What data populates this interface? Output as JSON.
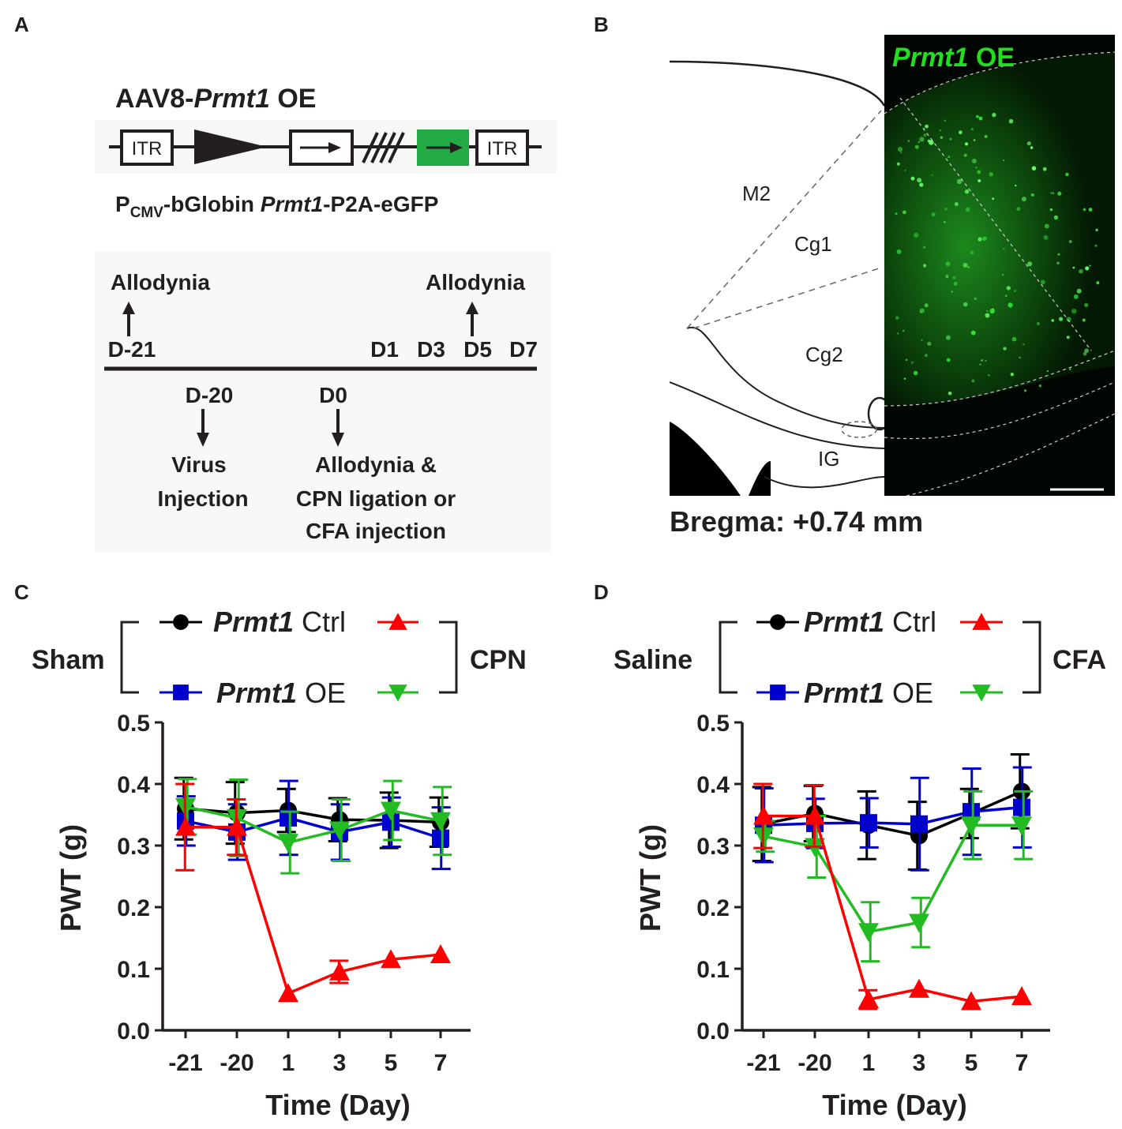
{
  "panels": {
    "a": "A",
    "b": "B",
    "c": "C",
    "d": "D"
  },
  "construct": {
    "title_prefix": "AAV8-",
    "title_gene": "Prmt1",
    "title_suffix": " OE",
    "itr_label": "ITR",
    "caption_p": "P",
    "caption_sub": "CMV",
    "caption_rest": "-bGlobin ",
    "caption_gene": "Prmt1",
    "caption_tail": "-P2A-eGFP"
  },
  "timeline": {
    "allodynia_left": "Allodynia",
    "allodynia_right": "Allodynia",
    "top_days": [
      "D-21",
      "D1",
      "D3",
      "D5",
      "D7"
    ],
    "d20": "D-20",
    "d0": "D0",
    "virus_line1": "Virus",
    "virus_line2": "Injection",
    "event_line1": "Allodynia &",
    "event_line2": "CPN ligation or",
    "event_line3": "CFA injection"
  },
  "atlas": {
    "regions": [
      "M2",
      "Cg1",
      "Cg2",
      "IG"
    ],
    "label_gene": "Prmt1",
    "label_suffix": " OE",
    "bregma": "Bregma: +0.74 mm"
  },
  "colors": {
    "ctrl_sham": "#000000",
    "ctrl_injured": "#ff0000",
    "oe_sham": "#0000cc",
    "oe_injured": "#22bb22",
    "gfp": "#22dd22"
  },
  "chart_data": [
    {
      "type": "line",
      "panel": "C",
      "legend_left": "Sham",
      "legend_right": "CPN",
      "legend_gene": "Prmt1",
      "legend_row1": " Ctrl",
      "legend_row2": " OE",
      "xlabel": "Time (Day)",
      "ylabel": "PWT (g)",
      "categories": [
        "-21",
        "-20",
        "1",
        "3",
        "5",
        "7"
      ],
      "ylim": [
        0,
        0.5
      ],
      "yticks": [
        "0.0",
        "0.1",
        "0.2",
        "0.3",
        "0.4",
        "0.5"
      ],
      "series": [
        {
          "name": "Sham Prmt1 Ctrl",
          "color": "#000000",
          "marker": "circle",
          "values": [
            0.36,
            0.353,
            0.357,
            0.342,
            0.341,
            0.338
          ],
          "err": [
            0.05,
            0.05,
            0.035,
            0.035,
            0.045,
            0.04
          ]
        },
        {
          "name": "CPN Prmt1 Ctrl",
          "color": "#ff0000",
          "marker": "triangle-up",
          "values": [
            0.33,
            0.33,
            0.06,
            0.095,
            0.115,
            0.123
          ],
          "err": [
            0.07,
            0.045,
            0.0,
            0.018,
            0.0,
            0.0
          ]
        },
        {
          "name": "Sham Prmt1 OE",
          "color": "#0000cc",
          "marker": "square",
          "values": [
            0.34,
            0.322,
            0.345,
            0.322,
            0.338,
            0.312
          ],
          "err": [
            0.04,
            0.045,
            0.06,
            0.045,
            0.04,
            0.05
          ]
        },
        {
          "name": "CPN Prmt1 OE",
          "color": "#22bb22",
          "marker": "triangle-down",
          "values": [
            0.363,
            0.345,
            0.305,
            0.325,
            0.357,
            0.34
          ],
          "err": [
            0.045,
            0.062,
            0.05,
            0.05,
            0.048,
            0.055
          ]
        }
      ]
    },
    {
      "type": "line",
      "panel": "D",
      "legend_left": "Saline",
      "legend_right": "CFA",
      "legend_gene": "Prmt1",
      "legend_row1": " Ctrl",
      "legend_row2": " OE",
      "xlabel": "Time (Day)",
      "ylabel": "PWT (g)",
      "categories": [
        "-21",
        "-20",
        "1",
        "3",
        "5",
        "7"
      ],
      "ylim": [
        0,
        0.5
      ],
      "yticks": [
        "0.0",
        "0.1",
        "0.2",
        "0.3",
        "0.4",
        "0.5"
      ],
      "series": [
        {
          "name": "Saline Prmt1 Ctrl",
          "color": "#000000",
          "marker": "circle",
          "values": [
            0.335,
            0.352,
            0.333,
            0.316,
            0.352,
            0.388
          ],
          "err": [
            0.06,
            0.045,
            0.055,
            0.055,
            0.04,
            0.06
          ]
        },
        {
          "name": "CFA Prmt1 Ctrl",
          "color": "#ff0000",
          "marker": "triangle-up",
          "values": [
            0.348,
            0.348,
            0.05,
            0.067,
            0.047,
            0.055
          ],
          "err": [
            0.052,
            0.05,
            0.015,
            0.0,
            0.0,
            0.0
          ]
        },
        {
          "name": "Saline Prmt1 OE",
          "color": "#0000cc",
          "marker": "square",
          "values": [
            0.333,
            0.336,
            0.337,
            0.335,
            0.355,
            0.362
          ],
          "err": [
            0.06,
            0.04,
            0.04,
            0.075,
            0.07,
            0.065
          ]
        },
        {
          "name": "CFA Prmt1 OE",
          "color": "#22bb22",
          "marker": "triangle-down",
          "values": [
            0.315,
            0.298,
            0.16,
            0.175,
            0.333,
            0.333
          ],
          "err": [
            0.025,
            0.05,
            0.048,
            0.04,
            0.055,
            0.055
          ]
        }
      ]
    }
  ]
}
